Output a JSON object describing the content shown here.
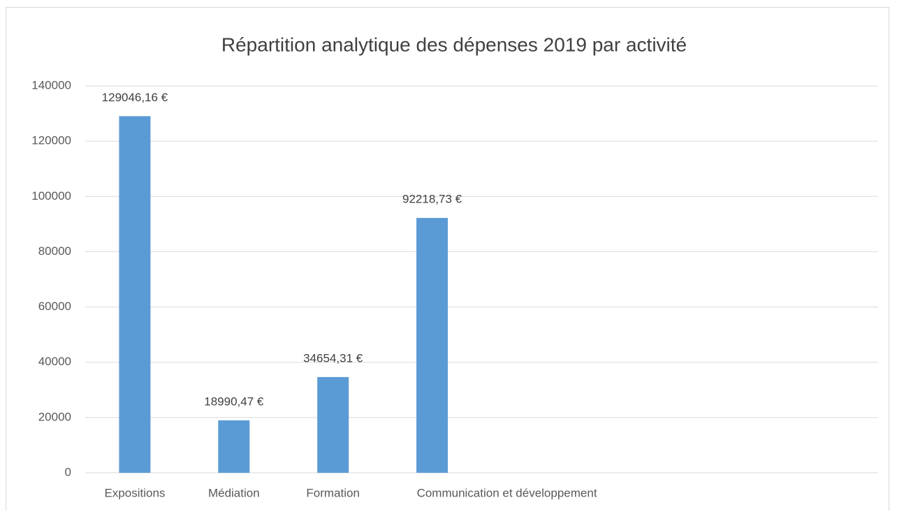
{
  "chart_data": {
    "type": "bar",
    "title": "Répartition analytique des dépenses 2019 par activité",
    "categories": [
      "Expositions",
      "Médiation",
      "Formation",
      "Communication et développement",
      null,
      null,
      null,
      null
    ],
    "values": [
      129046.16,
      18990.47,
      34654.31,
      92218.73,
      null,
      null,
      null,
      null
    ],
    "value_labels": [
      "129046,16 €",
      "18990,47 €",
      "34654,31 €",
      "92218,73 €",
      null,
      null,
      null,
      null
    ],
    "color": "#5b9bd5",
    "ylim": [
      0,
      140000
    ],
    "yticks": [
      0,
      20000,
      40000,
      60000,
      80000,
      100000,
      120000,
      140000
    ],
    "grid": true
  }
}
